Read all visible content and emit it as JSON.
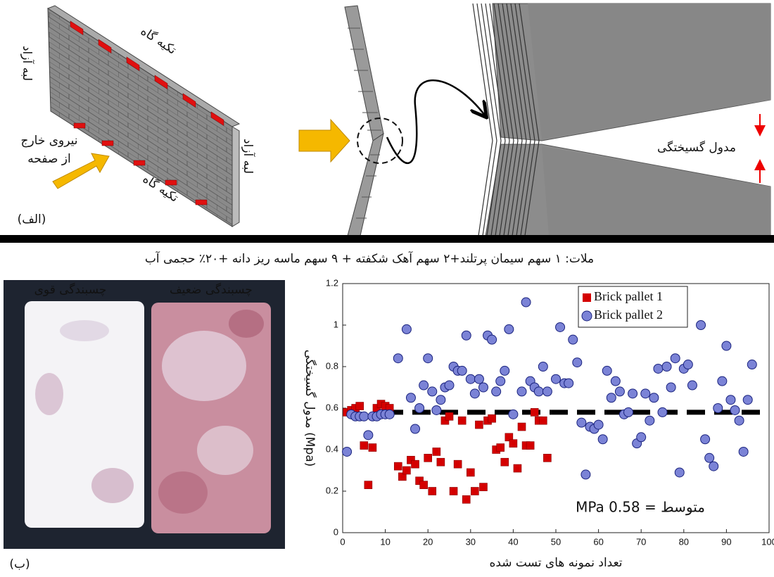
{
  "panel_a": {
    "support_top": "تکیه گاه",
    "free_edge_left": "لبه آزاد",
    "force_line1": "نیروی خارج",
    "force_line2": "از صفحه",
    "free_edge_right": "لبه آزاد",
    "support_bottom": "تکیه گاه",
    "label": "(الف)",
    "rupture_modulus": "مدول گسیختگی"
  },
  "caption": "ملات: ۱ سهم سیمان پرتلند+۲ سهم آهک شکفته + ۹ سهم ماسه ریز دانه +۲۰٪ حجمی آب",
  "panel_b": {
    "strong_bond": "چسبندگی قوی",
    "weak_bond": "چسبندگی ضعیف",
    "label": "(ب)"
  },
  "chart_data": {
    "type": "scatter",
    "x_label": "تعداد نمونه های تست شده",
    "y_label": "مدول گسیختگی (Mpa)",
    "xlim": [
      0,
      100
    ],
    "xticks": [
      0,
      10,
      20,
      30,
      40,
      50,
      60,
      70,
      80,
      90,
      100
    ],
    "ylim": [
      0,
      1.2
    ],
    "yticks": [
      0,
      0.2,
      0.4,
      0.6,
      0.8,
      1,
      1.2
    ],
    "grid": false,
    "legend": "top-right",
    "mean_line": {
      "value": 0.58,
      "label": "متوسط = 0.58 MPa"
    },
    "series": [
      {
        "name": "Brick pallet 1",
        "color": "#d40000",
        "marker": "square",
        "x": [
          1,
          2,
          3,
          4,
          5,
          6,
          7,
          8,
          9,
          10,
          11,
          13,
          14,
          15,
          16,
          17,
          18,
          19,
          20,
          21,
          22,
          23,
          24,
          25,
          26,
          27,
          28,
          29,
          30,
          31,
          32,
          33,
          34,
          35,
          36,
          37,
          38,
          39,
          40,
          41,
          42,
          43,
          44,
          45,
          46,
          47,
          48
        ],
        "values": [
          0.58,
          0.59,
          0.6,
          0.61,
          0.42,
          0.23,
          0.41,
          0.6,
          0.62,
          0.61,
          0.6,
          0.32,
          0.27,
          0.3,
          0.35,
          0.33,
          0.25,
          0.23,
          0.36,
          0.2,
          0.39,
          0.34,
          0.54,
          0.56,
          0.2,
          0.33,
          0.54,
          0.16,
          0.29,
          0.2,
          0.52,
          0.22,
          0.54,
          0.55,
          0.4,
          0.41,
          0.34,
          0.46,
          0.43,
          0.31,
          0.51,
          0.42,
          0.42,
          0.58,
          0.54,
          0.54,
          0.36
        ]
      },
      {
        "name": "Brick pallet 2",
        "color": "#7b83d6",
        "marker": "circle",
        "x": [
          1,
          2,
          3,
          4,
          5,
          6,
          7,
          8,
          9,
          10,
          11,
          13,
          15,
          16,
          17,
          18,
          19,
          20,
          21,
          22,
          23,
          24,
          25,
          26,
          27,
          28,
          29,
          30,
          31,
          32,
          33,
          34,
          35,
          36,
          37,
          38,
          39,
          40,
          42,
          43,
          44,
          45,
          46,
          47,
          48,
          50,
          51,
          52,
          53,
          54,
          55,
          56,
          57,
          58,
          59,
          60,
          61,
          62,
          63,
          64,
          65,
          66,
          67,
          68,
          69,
          70,
          71,
          72,
          73,
          74,
          75,
          76,
          77,
          78,
          79,
          80,
          81,
          82,
          84,
          85,
          86,
          87,
          88,
          89,
          90,
          91,
          92,
          93,
          94,
          95,
          96
        ],
        "values": [
          0.39,
          0.57,
          0.56,
          0.56,
          0.56,
          0.47,
          0.56,
          0.56,
          0.57,
          0.57,
          0.57,
          0.84,
          0.98,
          0.65,
          0.5,
          0.6,
          0.71,
          0.84,
          0.68,
          0.59,
          0.64,
          0.7,
          0.71,
          0.8,
          0.78,
          0.78,
          0.95,
          0.74,
          0.67,
          0.74,
          0.7,
          0.95,
          0.93,
          0.68,
          0.73,
          0.78,
          0.98,
          0.57,
          0.68,
          1.11,
          0.73,
          0.7,
          0.68,
          0.8,
          0.68,
          0.74,
          0.99,
          0.72,
          0.72,
          0.93,
          0.82,
          0.53,
          0.28,
          0.51,
          0.5,
          0.52,
          0.45,
          0.78,
          0.65,
          0.73,
          0.68,
          0.57,
          0.58,
          0.67,
          0.43,
          0.46,
          0.67,
          0.54,
          0.65,
          0.79,
          0.58,
          0.8,
          0.7,
          0.84,
          0.29,
          0.79,
          0.81,
          0.71,
          1.0,
          0.45,
          0.36,
          0.32,
          0.6,
          0.73,
          0.9,
          0.64,
          0.59,
          0.54,
          0.39,
          0.64,
          0.81
        ]
      }
    ]
  }
}
